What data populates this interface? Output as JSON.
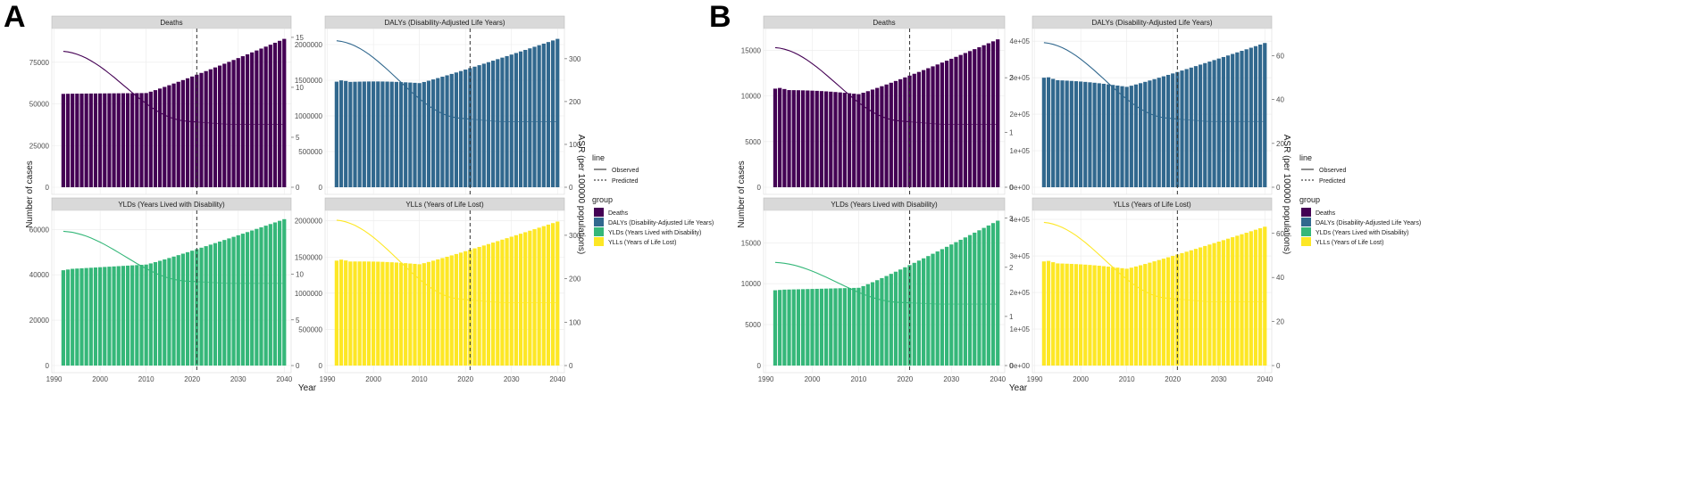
{
  "chart_data": [
    {
      "panel_label": "A",
      "type": "bar",
      "xlabel": "Year",
      "ylabel": "Number of cases",
      "y2label": "ASR (per 100000 populations)",
      "x_ticks": [
        "1990",
        "2000",
        "2010",
        "2020",
        "2030",
        "2040"
      ],
      "prediction_start_year": 2021,
      "facets": [
        {
          "title": "Deaths",
          "color": "#440154",
          "ylim": [
            0,
            92000
          ],
          "y_ticks": [
            0,
            25000,
            50000,
            75000
          ],
          "y_tick_labels": [
            "0",
            "25000",
            "50000",
            "75000"
          ],
          "y2lim": [
            0,
            15.35
          ],
          "y2_ticks": [
            0,
            5,
            10,
            15
          ],
          "start": 56000,
          "dip_val": 56500,
          "end": 89000,
          "asr_start": 13.6,
          "asr_end": 6.3
        },
        {
          "title": "DALYs (Disability-Adjusted Life Years)",
          "color": "#31688E",
          "ylim": [
            0,
            2150000
          ],
          "y_ticks": [
            0,
            500000,
            1000000,
            1500000,
            2000000
          ],
          "y_tick_labels": [
            "0",
            "500000",
            "1000000",
            "1500000",
            "2000000"
          ],
          "y2lim": [
            0,
            358
          ],
          "y2_ticks": [
            0,
            100,
            200,
            300
          ],
          "start": 1480000,
          "dip_val": 1460000,
          "end": 2080000,
          "asr_start": 342,
          "asr_end": 153
        },
        {
          "title": "YLDs (Years Lived with Disability)",
          "color": "#35B779",
          "ylim": [
            0,
            66000
          ],
          "y_ticks": [
            0,
            20000,
            40000,
            60000
          ],
          "y_tick_labels": [
            "0",
            "20000",
            "40000",
            "60000"
          ],
          "y2lim": [
            0,
            16.4
          ],
          "y2_ticks": [
            0,
            5,
            10
          ],
          "y2_tick_labels": [
            "0",
            "5",
            "10"
          ],
          "start": 42000,
          "dip_val": 44500,
          "end": 64500,
          "asr_start": 14.7,
          "asr_end": 9.0
        },
        {
          "title": "YLLs (Years of Life Lost)",
          "color": "#FDE725",
          "ylim": [
            0,
            2070000
          ],
          "y_ticks": [
            0,
            500000,
            1000000,
            1500000,
            2000000
          ],
          "y_tick_labels": [
            "0",
            "500000",
            "1000000",
            "1500000",
            "2000000"
          ],
          "y2lim": [
            0,
            345
          ],
          "y2_ticks": [
            0,
            100,
            200,
            300
          ],
          "start": 1450000,
          "dip_val": 1400000,
          "end": 1990000,
          "asr_start": 335,
          "asr_end": 145
        }
      ]
    },
    {
      "panel_label": "B",
      "type": "bar",
      "xlabel": "Year",
      "ylabel": "Number of cases",
      "y2label": "ASR (per 100000 populations)",
      "x_ticks": [
        "1990",
        "2000",
        "2010",
        "2020",
        "2030",
        "2040"
      ],
      "prediction_start_year": 2021,
      "facets": [
        {
          "title": "Deaths",
          "color": "#440154",
          "ylim": [
            0,
            16800
          ],
          "y_ticks": [
            0,
            5000,
            10000,
            15000
          ],
          "y_tick_labels": [
            "0",
            "5000",
            "10000",
            "15000"
          ],
          "y2lim": [
            0,
            2.8
          ],
          "y2_ticks": [
            0,
            1,
            2
          ],
          "y2_tick_labels": [
            "0",
            "1",
            "2"
          ],
          "start": 10800,
          "dip_val": 10200,
          "end": 16200,
          "asr_start": 2.55,
          "asr_end": 1.15
        },
        {
          "title": "DALYs (Disability-Adjusted Life Years)",
          "color": "#31688E",
          "ylim": [
            0,
            420000
          ],
          "y_ticks": [
            0,
            100000,
            200000,
            300000,
            400000
          ],
          "y_tick_labels": [
            "0e+00",
            "1e+05",
            "2e+05",
            "3e+05",
            "4e+05"
          ],
          "y2lim": [
            0,
            70
          ],
          "y2_ticks": [
            0,
            20,
            40,
            60
          ],
          "start": 300000,
          "dip_val": 275000,
          "end": 395000,
          "asr_start": 66,
          "asr_end": 30
        },
        {
          "title": "YLDs (Years Lived with Disability)",
          "color": "#35B779",
          "ylim": [
            0,
            18300
          ],
          "y_ticks": [
            0,
            5000,
            10000,
            15000
          ],
          "y_tick_labels": [
            "0",
            "5000",
            "10000",
            "15000"
          ],
          "y2lim": [
            0,
            3.05
          ],
          "y2_ticks": [
            0,
            1,
            2,
            3
          ],
          "start": 9200,
          "dip_val": 9500,
          "end": 17700,
          "asr_start": 2.1,
          "asr_end": 1.25
        },
        {
          "title": "YLLs (Years of Life Lost)",
          "color": "#FDE725",
          "ylim": [
            0,
            410000
          ],
          "y_ticks": [
            0,
            100000,
            200000,
            300000,
            400000
          ],
          "y_tick_labels": [
            "0e+00",
            "1e+05",
            "2e+05",
            "3e+05",
            "4e+05"
          ],
          "y2lim": [
            0,
            68
          ],
          "y2_ticks": [
            0,
            20,
            40,
            60
          ],
          "start": 285000,
          "dip_val": 265000,
          "end": 380000,
          "asr_start": 65,
          "asr_end": 29
        }
      ]
    }
  ],
  "legend": {
    "line_title": "line",
    "line_items": [
      {
        "label": "Observed",
        "dash": "solid"
      },
      {
        "label": "Predicted",
        "dash": "dashed"
      }
    ],
    "group_title": "group",
    "group_items": [
      {
        "label": "Deaths",
        "color": "#440154"
      },
      {
        "label": "DALYs (Disability-Adjusted Life Years)",
        "color": "#31688E"
      },
      {
        "label": "YLDs (Years Lived with Disability)",
        "color": "#35B779"
      },
      {
        "label": "YLLs (Years of Life Lost)",
        "color": "#FDE725"
      }
    ]
  },
  "colors": {
    "strip_bg": "#d9d9d9",
    "grid": "#ebebeb",
    "vline": "#333333"
  }
}
